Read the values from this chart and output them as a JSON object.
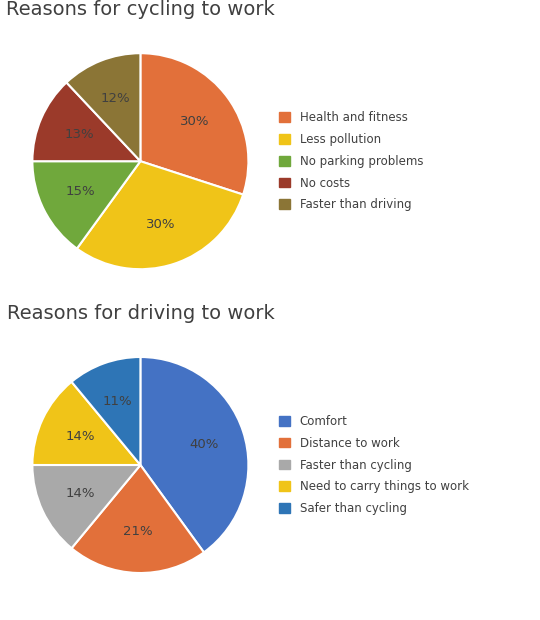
{
  "cycling": {
    "title": "Reasons for cycling to work",
    "labels": [
      "Health and fitness",
      "Less pollution",
      "No parking problems",
      "No costs",
      "Faster than driving"
    ],
    "values": [
      30,
      30,
      15,
      13,
      12
    ],
    "colors": [
      "#E2703A",
      "#F0C418",
      "#70A83C",
      "#9B3A2A",
      "#8B7536"
    ],
    "pct_labels": [
      "30%",
      "30%",
      "15%",
      "13%",
      "12%"
    ],
    "startangle": 90
  },
  "driving": {
    "title": "Reasons for driving to work",
    "labels": [
      "Comfort",
      "Distance to work",
      "Faster than cycling",
      "Need to carry things to work",
      "Safer than cycling"
    ],
    "values": [
      40,
      21,
      14,
      14,
      11
    ],
    "colors": [
      "#4472C4",
      "#E2703A",
      "#A9A9A9",
      "#F0C418",
      "#2E75B6"
    ],
    "pct_labels": [
      "40%",
      "21%",
      "14%",
      "14%",
      "11%"
    ],
    "startangle": 90
  },
  "title_fontsize": 14,
  "label_fontsize": 9.5,
  "legend_fontsize": 8.5,
  "title_color": "#404040",
  "label_color": "#404040"
}
